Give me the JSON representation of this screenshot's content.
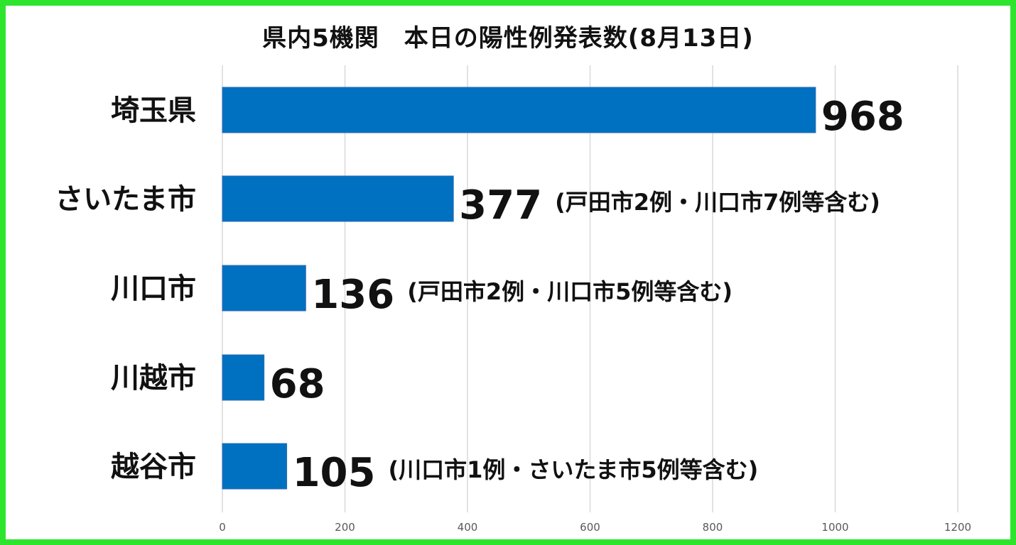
{
  "chart_data": {
    "type": "bar",
    "orientation": "horizontal",
    "title": "県内5機関　本日の陽性例発表数(8月13日)",
    "categories": [
      "埼玉県",
      "さいたま市",
      "川口市",
      "川越市",
      "越谷市"
    ],
    "values": [
      968,
      377,
      136,
      68,
      105
    ],
    "value_labels": [
      "968",
      "377",
      "136",
      "68",
      "105"
    ],
    "annotations": [
      "",
      "(戸田市2例・川口市7例等含む)",
      "(戸田市2例・川口市5例等含む)",
      "",
      "(川口市1例・さいたま市5例等含む)"
    ],
    "xlim": [
      0,
      1200
    ],
    "x_ticks": [
      "0",
      "200",
      "400",
      "600",
      "800",
      "1000",
      "1200"
    ],
    "grid": true,
    "bar_color": "#0070c0",
    "frame_color": "#2ee52e"
  }
}
